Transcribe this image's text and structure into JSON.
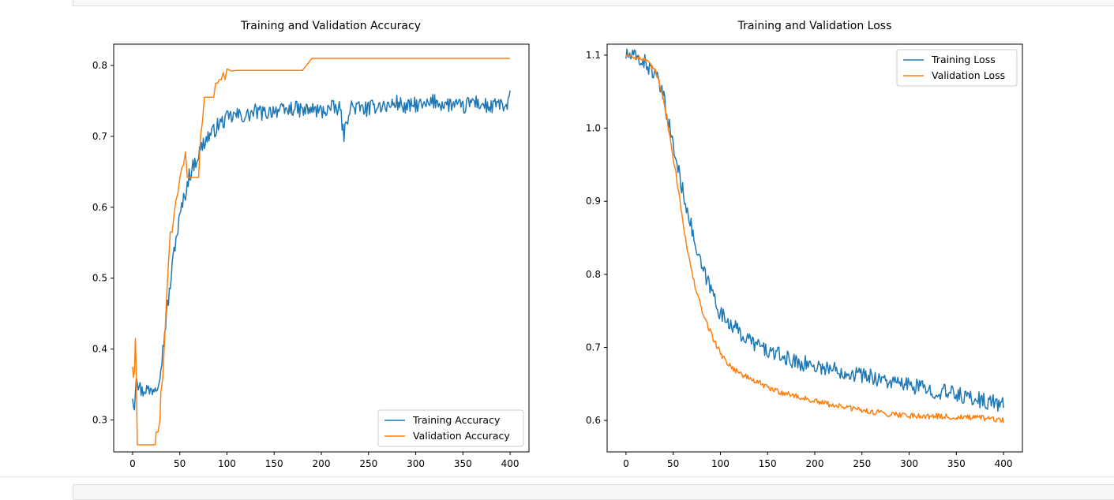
{
  "chart_data": [
    {
      "type": "line",
      "title": "Training and Validation Accuracy",
      "xlabel": "",
      "ylabel": "",
      "xlim": [
        -20,
        420
      ],
      "ylim": [
        0.255,
        0.83
      ],
      "xticks": [
        0,
        50,
        100,
        150,
        200,
        250,
        300,
        350,
        400
      ],
      "yticks": [
        0.3,
        0.4,
        0.5,
        0.6,
        0.7,
        0.8
      ],
      "ytick_labels": [
        "0.3",
        "0.4",
        "0.5",
        "0.6",
        "0.7",
        "0.8"
      ],
      "legend_position": "lower-right",
      "series": [
        {
          "name": "Training Accuracy",
          "color": "#1f77b4",
          "x": [
            0,
            2,
            4,
            6,
            8,
            10,
            14,
            18,
            22,
            26,
            30,
            33,
            36,
            40,
            44,
            48,
            52,
            56,
            60,
            65,
            70,
            75,
            80,
            85,
            90,
            95,
            100,
            110,
            120,
            130,
            140,
            150,
            160,
            170,
            180,
            190,
            200,
            210,
            220,
            224,
            230,
            240,
            250,
            260,
            270,
            280,
            290,
            300,
            310,
            320,
            330,
            340,
            350,
            360,
            370,
            380,
            390,
            395,
            400
          ],
          "y": [
            0.335,
            0.32,
            0.37,
            0.35,
            0.345,
            0.34,
            0.345,
            0.34,
            0.345,
            0.35,
            0.375,
            0.41,
            0.45,
            0.49,
            0.54,
            0.57,
            0.6,
            0.62,
            0.645,
            0.66,
            0.675,
            0.69,
            0.7,
            0.705,
            0.715,
            0.72,
            0.725,
            0.73,
            0.728,
            0.735,
            0.732,
            0.738,
            0.735,
            0.74,
            0.736,
            0.738,
            0.735,
            0.74,
            0.738,
            0.7,
            0.742,
            0.74,
            0.738,
            0.745,
            0.742,
            0.748,
            0.74,
            0.745,
            0.742,
            0.75,
            0.745,
            0.745,
            0.74,
            0.75,
            0.745,
            0.74,
            0.748,
            0.735,
            0.755
          ],
          "noise": 0.011
        },
        {
          "name": "Validation Accuracy",
          "color": "#ff7f0e",
          "x": [
            0,
            1,
            2,
            3,
            4,
            5,
            6,
            7,
            8,
            10,
            14,
            18,
            20,
            22,
            24,
            25,
            27,
            29,
            30,
            32,
            34,
            36,
            38,
            40,
            42,
            44,
            46,
            48,
            50,
            52,
            54,
            56,
            58,
            60,
            62,
            64,
            66,
            68,
            70,
            72,
            74,
            76,
            78,
            80,
            82,
            84,
            86,
            88,
            90,
            92,
            94,
            96,
            98,
            100,
            105,
            110,
            120,
            130,
            140,
            150,
            160,
            170,
            180,
            190,
            200,
            210,
            220,
            230,
            240,
            250,
            260,
            270,
            280,
            290,
            300,
            310,
            320,
            330,
            340,
            350,
            360,
            370,
            380,
            390,
            400
          ],
          "y": [
            0.375,
            0.36,
            0.37,
            0.415,
            0.36,
            0.265,
            0.265,
            0.265,
            0.265,
            0.265,
            0.265,
            0.265,
            0.265,
            0.265,
            0.265,
            0.283,
            0.283,
            0.3,
            0.34,
            0.36,
            0.415,
            0.47,
            0.52,
            0.565,
            0.565,
            0.59,
            0.61,
            0.62,
            0.64,
            0.655,
            0.66,
            0.678,
            0.642,
            0.642,
            0.642,
            0.642,
            0.642,
            0.642,
            0.642,
            0.7,
            0.72,
            0.755,
            0.755,
            0.755,
            0.755,
            0.755,
            0.755,
            0.775,
            0.775,
            0.78,
            0.78,
            0.79,
            0.78,
            0.795,
            0.792,
            0.793,
            0.793,
            0.793,
            0.793,
            0.793,
            0.793,
            0.793,
            0.793,
            0.81,
            0.81,
            0.81,
            0.81,
            0.81,
            0.81,
            0.81,
            0.81,
            0.81,
            0.81,
            0.81,
            0.81,
            0.81,
            0.81,
            0.81,
            0.81,
            0.81,
            0.81,
            0.81,
            0.81,
            0.81,
            0.81
          ],
          "noise": 0
        }
      ]
    },
    {
      "type": "line",
      "title": "Training and Validation Loss",
      "xlabel": "",
      "ylabel": "",
      "xlim": [
        -20,
        420
      ],
      "ylim": [
        0.557,
        1.115
      ],
      "xticks": [
        0,
        50,
        100,
        150,
        200,
        250,
        300,
        350,
        400
      ],
      "yticks": [
        0.6,
        0.7,
        0.8,
        0.9,
        1.0,
        1.1
      ],
      "ytick_labels": [
        "0.6",
        "0.7",
        "0.8",
        "0.9",
        "1.0",
        "1.1"
      ],
      "legend_position": "upper-right",
      "series": [
        {
          "name": "Training Loss",
          "color": "#1f77b4",
          "x": [
            0,
            10,
            20,
            30,
            35,
            40,
            45,
            50,
            55,
            60,
            65,
            70,
            75,
            80,
            85,
            90,
            95,
            100,
            110,
            120,
            130,
            140,
            150,
            160,
            170,
            180,
            190,
            200,
            210,
            220,
            230,
            240,
            250,
            260,
            270,
            280,
            290,
            300,
            310,
            320,
            330,
            340,
            350,
            360,
            370,
            380,
            390,
            400
          ],
          "y": [
            1.1,
            1.097,
            1.09,
            1.075,
            1.06,
            1.04,
            1.01,
            0.975,
            0.945,
            0.915,
            0.89,
            0.86,
            0.83,
            0.81,
            0.795,
            0.78,
            0.765,
            0.745,
            0.735,
            0.72,
            0.71,
            0.703,
            0.695,
            0.69,
            0.685,
            0.68,
            0.678,
            0.675,
            0.672,
            0.67,
            0.667,
            0.665,
            0.662,
            0.66,
            0.657,
            0.652,
            0.65,
            0.648,
            0.646,
            0.642,
            0.64,
            0.638,
            0.636,
            0.632,
            0.63,
            0.626,
            0.625,
            0.62
          ],
          "noise": 0.011
        },
        {
          "name": "Validation Loss",
          "color": "#ff7f0e",
          "x": [
            0,
            10,
            20,
            30,
            35,
            40,
            45,
            50,
            55,
            60,
            65,
            70,
            75,
            80,
            85,
            90,
            95,
            100,
            110,
            120,
            130,
            140,
            150,
            160,
            170,
            180,
            190,
            200,
            220,
            240,
            260,
            280,
            300,
            320,
            340,
            360,
            380,
            390,
            400
          ],
          "y": [
            1.1,
            1.098,
            1.093,
            1.08,
            1.065,
            1.04,
            1.0,
            0.96,
            0.92,
            0.875,
            0.835,
            0.8,
            0.775,
            0.752,
            0.735,
            0.72,
            0.705,
            0.692,
            0.675,
            0.665,
            0.658,
            0.652,
            0.645,
            0.64,
            0.637,
            0.633,
            0.63,
            0.626,
            0.621,
            0.616,
            0.612,
            0.609,
            0.607,
            0.606,
            0.605,
            0.604,
            0.603,
            0.601,
            0.6
          ],
          "noise": 0.004
        }
      ]
    }
  ]
}
